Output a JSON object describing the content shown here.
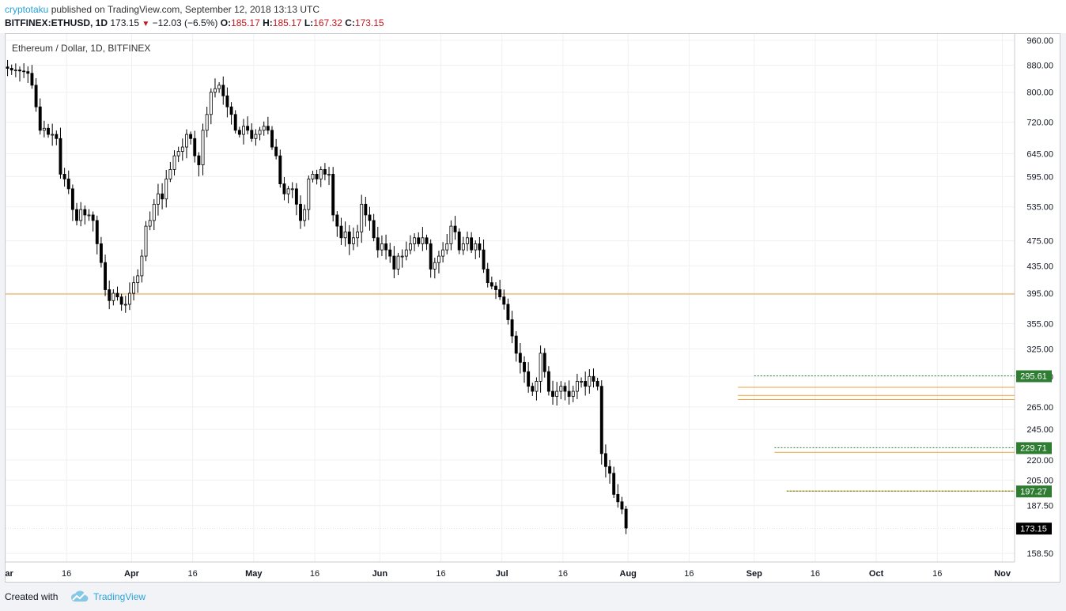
{
  "header": {
    "author": "cryptotaku",
    "published": " published on TradingView.com, September 12, 2018 13:13 UTC",
    "symbol": "BITFINEX:ETHUSD, 1D",
    "last": "173.15",
    "change": "−12.03 (−6.5%)",
    "o_label": "O:",
    "o_value": "185.17",
    "h_label": "H:",
    "h_value": "185.17",
    "l_label": "L:",
    "l_value": "167.32",
    "c_label": "C:",
    "c_value": "173.15"
  },
  "footer": {
    "created": "Created with",
    "brand": "TradingView"
  },
  "colors": {
    "orange": "#f0a13c",
    "green": "#2e7d32",
    "dark": "#000000",
    "grid": "#eef0f3"
  },
  "chart_data": {
    "type": "candlestick",
    "title": "Ethereum / Dollar, 1D, BITFINEX",
    "y_scale": "log",
    "ylim": [
      150,
      960
    ],
    "x_start": "2018-03-01",
    "x_end": "2018-11-04",
    "y_ticks": [
      "960.00",
      "880.00",
      "800.00",
      "720.00",
      "645.00",
      "595.00",
      "535.00",
      "475.00",
      "435.00",
      "395.00",
      "355.00",
      "325.00",
      "295.00",
      "265.00",
      "245.00",
      "220.00",
      "205.00",
      "187.50",
      "158.50"
    ],
    "x_ticks": [
      {
        "label": "Mar",
        "date": "2018-03-01"
      },
      {
        "label": "16",
        "date": "2018-03-16"
      },
      {
        "label": "Apr",
        "date": "2018-04-01"
      },
      {
        "label": "16",
        "date": "2018-04-16"
      },
      {
        "label": "May",
        "date": "2018-05-01"
      },
      {
        "label": "16",
        "date": "2018-05-16"
      },
      {
        "label": "Jun",
        "date": "2018-06-01"
      },
      {
        "label": "16",
        "date": "2018-06-16"
      },
      {
        "label": "Jul",
        "date": "2018-07-01"
      },
      {
        "label": "16",
        "date": "2018-07-16"
      },
      {
        "label": "Aug",
        "date": "2018-08-01"
      },
      {
        "label": "16",
        "date": "2018-08-16"
      },
      {
        "label": "Sep",
        "date": "2018-09-01"
      },
      {
        "label": "16",
        "date": "2018-09-16"
      },
      {
        "label": "Oct",
        "date": "2018-10-01"
      },
      {
        "label": "16",
        "date": "2018-10-16"
      },
      {
        "label": "Nov",
        "date": "2018-11-01"
      }
    ],
    "horizontal_lines": [
      {
        "price": 394,
        "style": "solid",
        "color": "#f0a13c",
        "from": "2018-03-01"
      },
      {
        "price": 284,
        "style": "solid",
        "color": "#f0a13c",
        "from": "2018-08-28"
      },
      {
        "price": 276,
        "style": "solid",
        "color": "#f0a13c",
        "from": "2018-08-28"
      },
      {
        "price": 272,
        "style": "solid",
        "color": "#f0a13c",
        "from": "2018-08-28"
      },
      {
        "price": 226,
        "style": "solid",
        "color": "#f0a13c",
        "from": "2018-09-06"
      },
      {
        "price": 197.27,
        "style": "solid",
        "color": "#f0a13c",
        "from": "2018-09-09"
      },
      {
        "price": 295.61,
        "style": "dotted",
        "color": "#2e7d32",
        "from": "2018-09-01",
        "label": "295.61"
      },
      {
        "price": 229.71,
        "style": "dotted",
        "color": "#2e7d32",
        "from": "2018-09-06",
        "label": "229.71"
      },
      {
        "price": 197.27,
        "style": "dotted",
        "color": "#2e7d32",
        "from": "2018-09-09",
        "label": "197.27"
      }
    ],
    "last_price": {
      "price": 173.15,
      "label": "173.15"
    },
    "closes": [
      870,
      865,
      865,
      862,
      860,
      855,
      820,
      760,
      700,
      705,
      690,
      690,
      680,
      600,
      590,
      570,
      530,
      510,
      530,
      520,
      520,
      510,
      470,
      440,
      400,
      385,
      395,
      390,
      380,
      380,
      395,
      410,
      420,
      450,
      500,
      510,
      540,
      560,
      550,
      590,
      610,
      640,
      650,
      660,
      690,
      680,
      640,
      620,
      700,
      740,
      800,
      810,
      820,
      790,
      760,
      740,
      700,
      690,
      710,
      700,
      680,
      690,
      700,
      710,
      700,
      660,
      640,
      580,
      560,
      570,
      570,
      540,
      510,
      530,
      590,
      600,
      590,
      610,
      600,
      600,
      520,
      500,
      480,
      490,
      470,
      480,
      490,
      540,
      520,
      510,
      480,
      460,
      470,
      460,
      450,
      430,
      450,
      450,
      460,
      470,
      480,
      470,
      480,
      470,
      430,
      440,
      450,
      460,
      470,
      500,
      490,
      460,
      470,
      480,
      460,
      470,
      460,
      430,
      410,
      405,
      400,
      390,
      380,
      360,
      340,
      320,
      310,
      300,
      285,
      280,
      290,
      320,
      300,
      280,
      275,
      280,
      285,
      280,
      275,
      280,
      290,
      290,
      285,
      295,
      290,
      285,
      225,
      215,
      210,
      195,
      190,
      185.17,
      173.15
    ]
  }
}
